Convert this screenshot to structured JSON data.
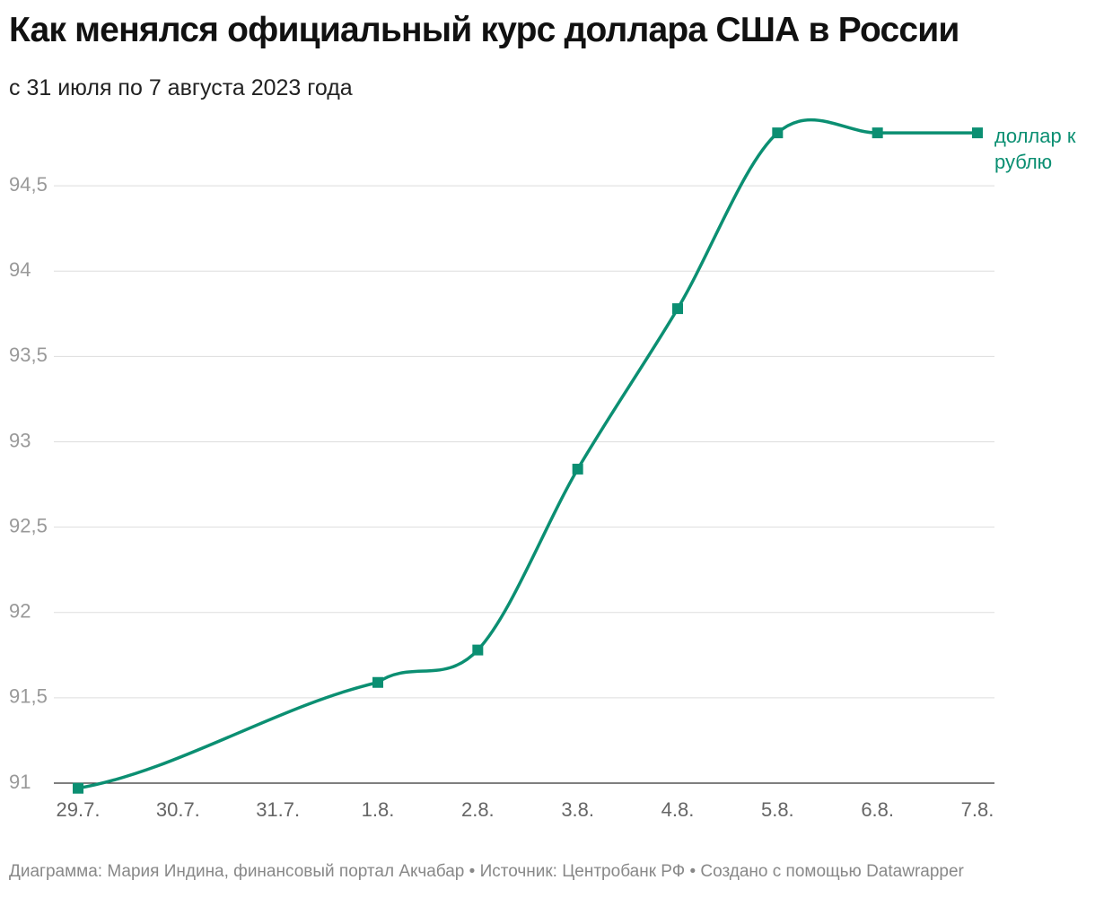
{
  "chart_data": {
    "type": "line",
    "title": "Как менялся официальный курс доллара США в России",
    "subtitle": "с 31 июля по 7 августа 2023 года",
    "source": "Диаграмма: Мария Индина, финансовый портал Акчабар • Источник: Центробанк РФ • Создано с помощью Datawrapper",
    "categories": [
      "29.7.",
      "30.7.",
      "31.7.",
      "1.8.",
      "2.8.",
      "3.8.",
      "4.8.",
      "5.8.",
      "6.8.",
      "7.8."
    ],
    "series": [
      {
        "name": "доллар к рублю",
        "color": "#0b8f72",
        "x": [
          "29.7.",
          "1.8.",
          "2.8.",
          "3.8.",
          "4.8.",
          "5.8.",
          "6.8.",
          "7.8."
        ],
        "values": [
          90.97,
          91.59,
          91.78,
          92.84,
          93.78,
          94.81,
          94.81,
          94.81
        ]
      }
    ],
    "ylim": [
      91,
      94.9
    ],
    "yticks": [
      91,
      {
        "value": 91.5,
        "label": "91,5"
      },
      92,
      {
        "value": 92.5,
        "label": "92,5"
      },
      93,
      {
        "value": 93.5,
        "label": "93,5"
      },
      94,
      {
        "value": 94.5,
        "label": "94,5"
      }
    ],
    "grid": true
  }
}
